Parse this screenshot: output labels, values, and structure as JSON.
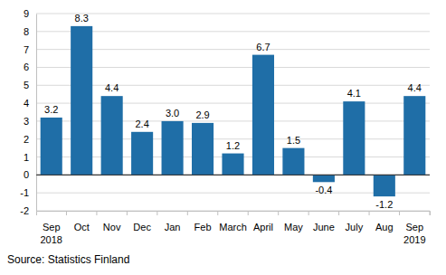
{
  "chart_data": {
    "type": "bar",
    "categories": [
      "Sep 2018",
      "Oct",
      "Nov",
      "Dec",
      "Jan",
      "Feb",
      "March",
      "April",
      "May",
      "June",
      "July",
      "Aug",
      "Sep 2019"
    ],
    "values": [
      3.2,
      8.3,
      4.4,
      2.4,
      3.0,
      2.9,
      1.2,
      6.7,
      1.5,
      -0.4,
      4.1,
      -1.2,
      4.4
    ],
    "value_labels": [
      "3.2",
      "8.3",
      "4.4",
      "2.4",
      "3.0",
      "2.9",
      "1.2",
      "6.7",
      "1.5",
      "-0.4",
      "4.1",
      "-1.2",
      "4.4"
    ],
    "color": "#1f6ea7",
    "ylim": [
      -2,
      9
    ],
    "yticks": [
      -2,
      -1,
      0,
      1,
      2,
      3,
      4,
      5,
      6,
      7,
      8,
      9
    ],
    "grid": true,
    "data_labels": true,
    "source": "Source: Statistics Finland"
  }
}
